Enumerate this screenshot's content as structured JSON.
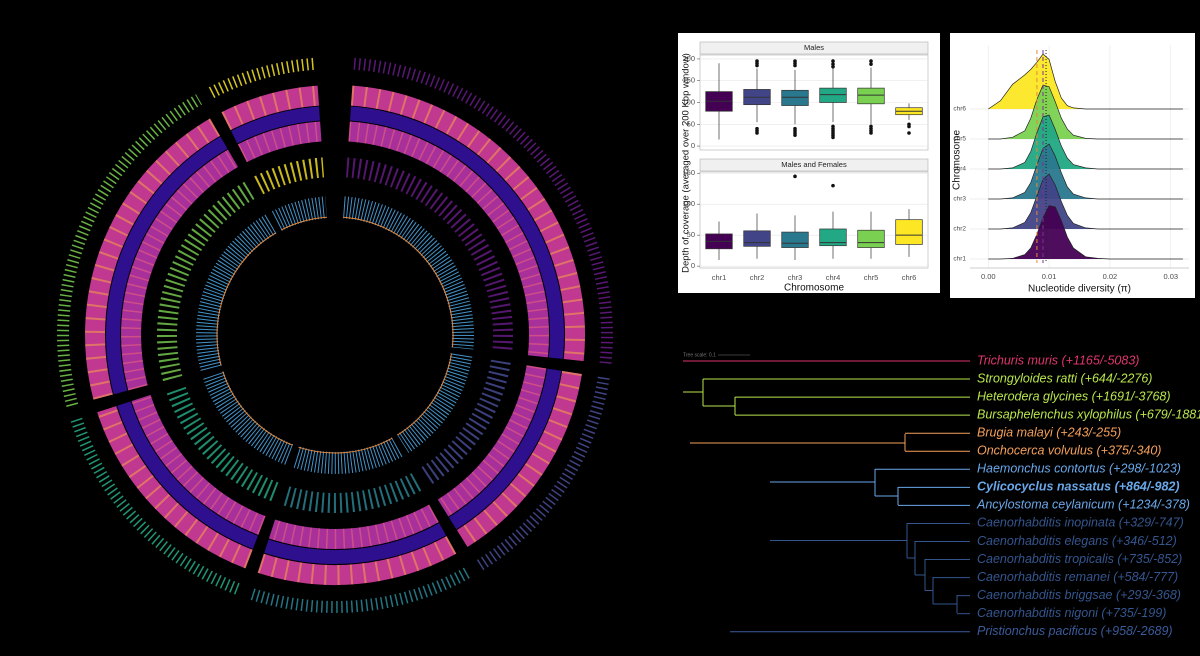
{
  "chart_data": [
    {
      "type": "box",
      "title": "Males",
      "ylabel": "Depth of coverage (averaged over 200 Kbp window)",
      "colors": [
        "#440154",
        "#414487",
        "#2a788e",
        "#22a884",
        "#7ad151",
        "#fde725"
      ],
      "ylim": [
        -9,
        209
      ],
      "yticks": [
        0,
        50,
        100,
        150,
        200
      ],
      "grid": true,
      "min": [
        15,
        55,
        50,
        55,
        50,
        60
      ],
      "q1": [
        80,
        95,
        93,
        100,
        97,
        72
      ],
      "median": [
        103,
        112,
        112,
        118,
        117,
        80
      ],
      "q3": [
        125,
        130,
        128,
        133,
        133,
        88
      ],
      "max": [
        190,
        178,
        175,
        180,
        180,
        98
      ],
      "outliers": [
        [],
        [
          195,
          190,
          185,
          40,
          35,
          30
        ],
        [
          195,
          190,
          185,
          40,
          35,
          30,
          25
        ],
        [
          195,
          188,
          182,
          45,
          40,
          35,
          30,
          25,
          20
        ],
        [
          195,
          188,
          45,
          40,
          35,
          30
        ],
        [
          50,
          45,
          30
        ]
      ]
    },
    {
      "type": "box",
      "title": "Males and Females",
      "xlabel": "Chromosome",
      "categories": [
        "chr1",
        "chr2",
        "chr3",
        "chr4",
        "chr5",
        "chr6"
      ],
      "colors": [
        "#440154",
        "#414487",
        "#2a788e",
        "#22a884",
        "#7ad151",
        "#fde725"
      ],
      "ylim": [
        -3,
        152
      ],
      "yticks": [
        0,
        50,
        100,
        150
      ],
      "grid": true,
      "min": [
        10,
        12,
        10,
        12,
        12,
        15
      ],
      "q1": [
        28,
        32,
        30,
        33,
        30,
        35
      ],
      "median": [
        40,
        38,
        37,
        38,
        38,
        50
      ],
      "q3": [
        52,
        57,
        55,
        60,
        58,
        75
      ],
      "max": [
        72,
        85,
        82,
        88,
        88,
        92
      ],
      "outliers": [
        [],
        [],
        [
          145
        ],
        [
          130
        ],
        [],
        []
      ]
    },
    {
      "type": "ridgeline",
      "xlabel": "Nucleotide diversity (π)",
      "ylabel": "Chromosome",
      "xlim": [
        -0.003,
        0.033
      ],
      "xticks": [
        {
          "value": 0,
          "label": "0.00"
        },
        0.01,
        0.02,
        0.03
      ],
      "grid": true,
      "x": [
        0,
        0.002,
        0.004,
        0.006,
        0.007,
        0.008,
        0.009,
        0.01,
        0.011,
        0.012,
        0.013,
        0.014,
        0.016,
        0.018,
        0.02,
        0.032
      ],
      "series": [
        {
          "name": "chr1",
          "color": "#440154",
          "values": [
            0,
            0,
            0.01,
            0.08,
            0.2,
            0.45,
            0.75,
            0.97,
            0.95,
            0.7,
            0.4,
            0.2,
            0.04,
            0.01,
            0,
            0
          ]
        },
        {
          "name": "chr2",
          "color": "#414487",
          "values": [
            0,
            0,
            0.02,
            0.12,
            0.3,
            0.6,
            0.9,
            1,
            0.8,
            0.5,
            0.25,
            0.1,
            0.02,
            0,
            0,
            0
          ]
        },
        {
          "name": "chr3",
          "color": "#2a788e",
          "values": [
            0,
            0,
            0.02,
            0.12,
            0.3,
            0.62,
            0.92,
            1,
            0.78,
            0.48,
            0.22,
            0.09,
            0.02,
            0,
            0,
            0
          ]
        },
        {
          "name": "chr4",
          "color": "#22a884",
          "values": [
            0,
            0,
            0.02,
            0.12,
            0.32,
            0.66,
            0.95,
            0.98,
            0.72,
            0.42,
            0.2,
            0.08,
            0.02,
            0,
            0,
            0
          ]
        },
        {
          "name": "chr5",
          "color": "#7ad151",
          "values": [
            0,
            0,
            0.03,
            0.15,
            0.38,
            0.72,
            0.98,
            0.95,
            0.68,
            0.38,
            0.18,
            0.07,
            0.01,
            0,
            0,
            0
          ]
        },
        {
          "name": "chr6",
          "color": "#fde725",
          "values": [
            0,
            0.15,
            0.45,
            0.62,
            0.72,
            0.85,
            1,
            0.9,
            0.5,
            0.2,
            0.06,
            0.02,
            0,
            0,
            0,
            0
          ]
        }
      ],
      "vlines": [
        {
          "value": 0.008,
          "color": "#e8873a",
          "style": "dashed"
        },
        {
          "value": 0.009,
          "color": "#7b3294",
          "style": "dashed"
        },
        {
          "value": 0.0095,
          "color": "#222222",
          "style": "dotted"
        }
      ]
    }
  ],
  "tree": {
    "scale_label": "Tree scale: 0.1",
    "taxa": [
      {
        "label": "Trichuris muris (+1165/-5083)",
        "color": "#e0356e",
        "bold": false
      },
      {
        "label": "Strongyloides ratti (+644/-2276)",
        "color": "#b9e64b",
        "bold": false
      },
      {
        "label": "Heterodera glycines (+1691/-3768)",
        "color": "#b9e64b",
        "bold": false
      },
      {
        "label": "Bursaphelenchus xylophilus (+679/-1881)",
        "color": "#b9e64b",
        "bold": false
      },
      {
        "label": "Brugia malayi (+243/-255)",
        "color": "#f5a05a",
        "bold": false
      },
      {
        "label": "Onchocerca volvulus (+375/-340)",
        "color": "#f5a05a",
        "bold": false
      },
      {
        "label": "Haemonchus contortus (+298/-1023)",
        "color": "#6aa8ea",
        "bold": false
      },
      {
        "label": "Cylicocyclus nassatus (+864/-982)",
        "color": "#6aa8ea",
        "bold": true
      },
      {
        "label": "Ancylostoma ceylanicum (+1234/-378)",
        "color": "#6aa8ea",
        "bold": false
      },
      {
        "label": "Caenorhabditis inopinata (+329/-747)",
        "color": "#34568f",
        "bold": false
      },
      {
        "label": "Caenorhabditis elegans (+346/-512)",
        "color": "#34568f",
        "bold": false
      },
      {
        "label": "Caenorhabditis tropicalis (+735/-852)",
        "color": "#34568f",
        "bold": false
      },
      {
        "label": "Caenorhabditis remanei (+584/-777)",
        "color": "#34568f",
        "bold": false
      },
      {
        "label": "Caenorhabditis briggsae (+293/-368)",
        "color": "#34568f",
        "bold": false
      },
      {
        "label": "Caenorhabditis nigoni (+735/-199)",
        "color": "#34568f",
        "bold": false
      },
      {
        "label": "Pristionchus pacificus (+958/-2689)",
        "color": "#3b5c9c",
        "bold": false
      }
    ]
  }
}
